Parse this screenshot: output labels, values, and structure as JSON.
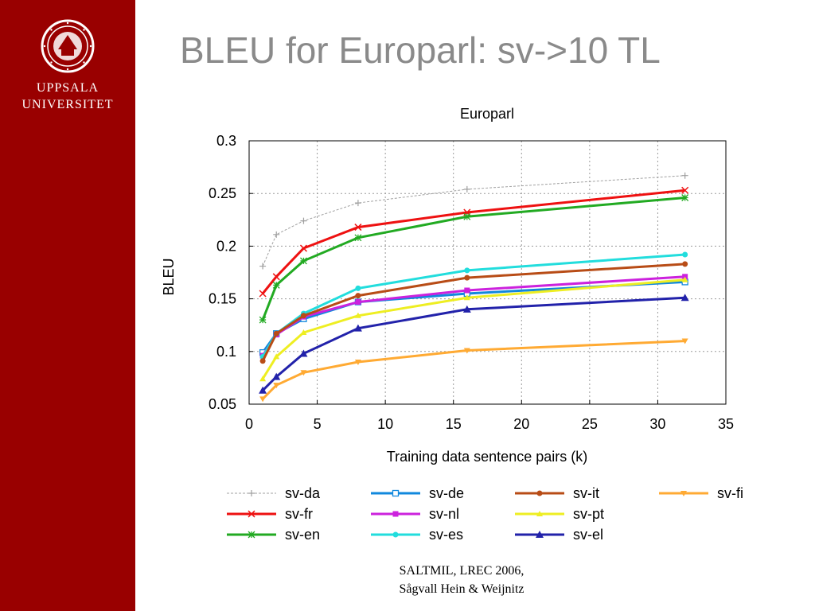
{
  "sidebar": {
    "logo": "uppsala-seal-icon",
    "university_line1": "UPPSALA",
    "university_line2": "UNIVERSITET",
    "bg_color": "#990000"
  },
  "slide": {
    "title": "BLEU for Europarl: sv->10 TL",
    "footer_line1": "SALTMIL, LREC 2006,",
    "footer_line2": "Sågvall Hein & Weijnitz"
  },
  "chart_data": {
    "type": "line",
    "title": "Europarl",
    "xlabel": "Training data sentence pairs (k)",
    "ylabel": "BLEU",
    "xlim": [
      0,
      35
    ],
    "ylim": [
      0.05,
      0.3
    ],
    "xticks": [
      "0",
      "5",
      "10",
      "15",
      "20",
      "25",
      "30",
      "35"
    ],
    "yticks": [
      "0.05",
      "0.1",
      "0.15",
      "0.2",
      "0.25",
      "0.3"
    ],
    "grid": true,
    "legend_placement": "bottom",
    "x": [
      1,
      2,
      4,
      8,
      16,
      32
    ],
    "series": [
      {
        "name": "sv-da",
        "color": "#a0a0a0",
        "marker": "plus",
        "dashed": true,
        "values": [
          0.181,
          0.211,
          0.224,
          0.241,
          0.254,
          0.267
        ]
      },
      {
        "name": "sv-fr",
        "color": "#ee1111",
        "marker": "x",
        "values": [
          0.155,
          0.171,
          0.198,
          0.218,
          0.232,
          0.253
        ]
      },
      {
        "name": "sv-en",
        "color": "#22aa22",
        "marker": "star",
        "values": [
          0.13,
          0.163,
          0.186,
          0.208,
          0.228,
          0.246
        ]
      },
      {
        "name": "sv-de",
        "color": "#1188dd",
        "marker": "square-open",
        "values": [
          0.099,
          0.117,
          0.131,
          0.147,
          0.155,
          0.166
        ]
      },
      {
        "name": "sv-nl",
        "color": "#cc22dd",
        "marker": "square",
        "values": [
          0.096,
          0.116,
          0.133,
          0.147,
          0.158,
          0.171
        ]
      },
      {
        "name": "sv-es",
        "color": "#22dddd",
        "marker": "circle",
        "values": [
          0.095,
          0.117,
          0.136,
          0.16,
          0.177,
          0.192
        ]
      },
      {
        "name": "sv-it",
        "color": "#b84c16",
        "marker": "circle",
        "values": [
          0.091,
          0.117,
          0.134,
          0.153,
          0.17,
          0.183
        ]
      },
      {
        "name": "sv-pt",
        "color": "#eeee22",
        "marker": "triangle",
        "values": [
          0.074,
          0.095,
          0.118,
          0.134,
          0.151,
          0.168
        ]
      },
      {
        "name": "sv-el",
        "color": "#2222aa",
        "marker": "triangle-filled",
        "values": [
          0.063,
          0.076,
          0.098,
          0.122,
          0.14,
          0.151
        ]
      },
      {
        "name": "sv-fi",
        "color": "#ffaa33",
        "marker": "triangle-down",
        "values": [
          0.055,
          0.068,
          0.08,
          0.09,
          0.101,
          0.11
        ]
      }
    ],
    "legend_order": [
      "sv-da",
      "sv-de",
      "sv-it",
      "sv-fi",
      "sv-fr",
      "sv-nl",
      "sv-pt",
      "sv-en",
      "sv-es",
      "sv-el"
    ]
  }
}
